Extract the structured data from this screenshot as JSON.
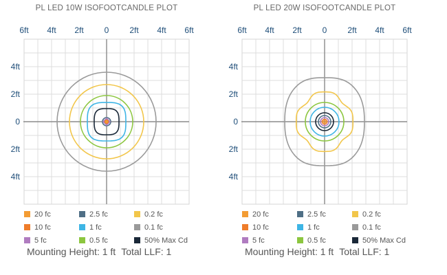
{
  "chart_data": [
    {
      "type": "line",
      "title": "PL LED 10W ISOFOOTCANDLE PLOT",
      "x_ticks": [
        "6ft",
        "4ft",
        "2ft",
        "0",
        "2ft",
        "4ft",
        "6ft"
      ],
      "y_ticks": [
        "4ft",
        "2ft",
        "0",
        "2ft",
        "4ft"
      ],
      "xlim": [
        -6,
        6
      ],
      "ylim": [
        -6,
        6
      ],
      "grid": true,
      "legend": [
        {
          "label": "20 fc",
          "color": "#f39c34"
        },
        {
          "label": "2.5 fc",
          "color": "#4f6f86"
        },
        {
          "label": "0.2 fc",
          "color": "#f2c64a"
        },
        {
          "label": "10 fc",
          "color": "#ef7d2a"
        },
        {
          "label": "1 fc",
          "color": "#3eb5e5"
        },
        {
          "label": "0.1 fc",
          "color": "#9a9a9a"
        },
        {
          "label": "5 fc",
          "color": "#b07cc0"
        },
        {
          "label": "0.5 fc",
          "color": "#8cc63f"
        },
        {
          "label": "50% Max Cd",
          "color": "#1a2838"
        }
      ],
      "series": [
        {
          "level": "0.1 fc",
          "color": "#9a9a9a",
          "shape": "circle",
          "rx": 3.6,
          "ry": 3.6
        },
        {
          "level": "0.2 fc",
          "color": "#f2c64a",
          "shape": "circle",
          "rx": 2.7,
          "ry": 2.7
        },
        {
          "level": "0.5 fc",
          "color": "#8cc63f",
          "shape": "circle",
          "rx": 1.9,
          "ry": 1.9
        },
        {
          "level": "1 fc",
          "color": "#3eb5e5",
          "shape": "rounded",
          "rx": 1.4,
          "ry": 1.4
        },
        {
          "level": "50% Max Cd",
          "color": "#1a2838",
          "shape": "rounded",
          "rx": 0.9,
          "ry": 0.95
        },
        {
          "level": "2.5 fc",
          "color": "#4f6f86",
          "shape": "circle",
          "rx": 0.3,
          "ry": 0.3
        },
        {
          "level": "5 fc",
          "color": "#b07cc0",
          "shape": "diamond",
          "rx": 0.25,
          "ry": 0.25
        },
        {
          "level": "10 fc",
          "color": "#ef7d2a",
          "shape": "circle",
          "rx": 0.12,
          "ry": 0.12
        },
        {
          "level": "20 fc",
          "color": "#f39c34",
          "shape": "circle",
          "rx": 0.06,
          "ry": 0.06
        }
      ],
      "caption": {
        "mounting": "Mounting Height: 1 ft",
        "llf": "Total LLF: 1"
      }
    },
    {
      "type": "line",
      "title": "PL LED 20W ISOFOOTCANDLE PLOT",
      "x_ticks": [
        "6ft",
        "4ft",
        "2ft",
        "0",
        "2ft",
        "4ft",
        "6ft"
      ],
      "y_ticks": [
        "4ft",
        "2ft",
        "0",
        "2ft",
        "4ft"
      ],
      "xlim": [
        -6,
        6
      ],
      "ylim": [
        -6,
        6
      ],
      "grid": true,
      "legend": [
        {
          "label": "20 fc",
          "color": "#f39c34"
        },
        {
          "label": "2.5 fc",
          "color": "#4f6f86"
        },
        {
          "label": "0.2 fc",
          "color": "#f2c64a"
        },
        {
          "label": "10 fc",
          "color": "#ef7d2a"
        },
        {
          "label": "1 fc",
          "color": "#3eb5e5"
        },
        {
          "label": "0.1 fc",
          "color": "#9a9a9a"
        },
        {
          "label": "5 fc",
          "color": "#b07cc0"
        },
        {
          "label": "0.5 fc",
          "color": "#8cc63f"
        },
        {
          "label": "50% Max Cd",
          "color": "#1a2838"
        }
      ],
      "series": [
        {
          "level": "0.1 fc",
          "color": "#9a9a9a",
          "shape": "blob",
          "rx": 2.9,
          "ry": 3.2
        },
        {
          "level": "0.2 fc",
          "color": "#f2c64a",
          "shape": "wavy",
          "rx": 2.0,
          "ry": 2.1
        },
        {
          "level": "0.5 fc",
          "color": "#8cc63f",
          "shape": "circle",
          "rx": 1.4,
          "ry": 1.4
        },
        {
          "level": "1 fc",
          "color": "#3eb5e5",
          "shape": "circle",
          "rx": 1.05,
          "ry": 1.05
        },
        {
          "level": "50% Max Cd",
          "color": "#1a2838",
          "shape": "circle",
          "rx": 0.65,
          "ry": 0.65
        },
        {
          "level": "2.5 fc",
          "color": "#4f6f86",
          "shape": "circle",
          "rx": 0.45,
          "ry": 0.45
        },
        {
          "level": "5 fc",
          "color": "#b07cc0",
          "shape": "circle",
          "rx": 0.3,
          "ry": 0.3
        },
        {
          "level": "10 fc",
          "color": "#ef7d2a",
          "shape": "circle",
          "rx": 0.18,
          "ry": 0.18
        },
        {
          "level": "20 fc",
          "color": "#f39c34",
          "shape": "circle",
          "rx": 0.08,
          "ry": 0.08
        }
      ],
      "caption": {
        "mounting": "Mounting Height: 1 ft",
        "llf": "Total LLF: 1"
      }
    }
  ]
}
